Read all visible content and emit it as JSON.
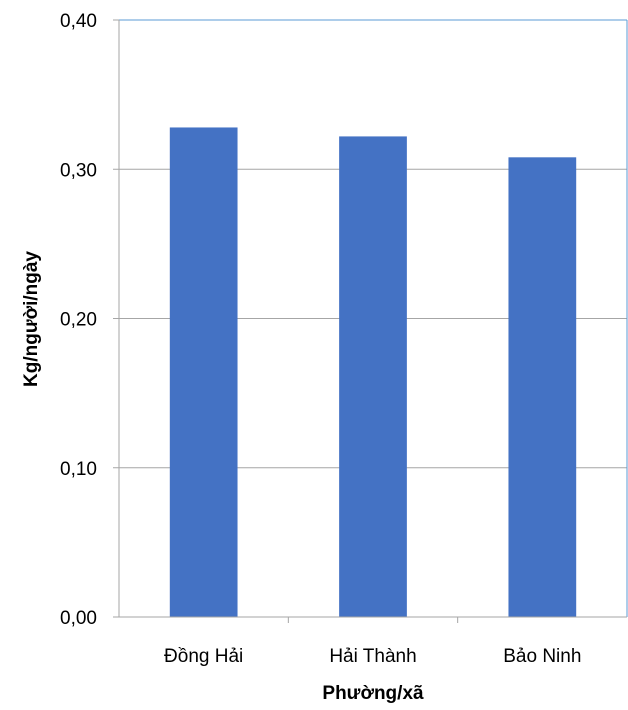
{
  "chart_data": {
    "type": "bar",
    "title": "",
    "xlabel": "Phường/xã",
    "ylabel": "Kg/người/ngày",
    "categories": [
      "Đồng Hải",
      "Hải Thành",
      "Bảo Ninh"
    ],
    "series": [
      {
        "values": [
          0.328,
          0.322,
          0.308
        ]
      }
    ],
    "ylim": [
      0,
      0.4
    ],
    "yticks": [
      0.0,
      0.1,
      0.2,
      0.3,
      0.4
    ],
    "ytick_labels": [
      "0,00",
      "0,10",
      "0,20",
      "0,30",
      "0,40"
    ],
    "grid": true,
    "legend": "none",
    "colors": {
      "bar": "#4472C4",
      "grid": "#A6A6A6",
      "axis": "#A6A6A6",
      "plot_border": "#5B9BD5"
    }
  }
}
